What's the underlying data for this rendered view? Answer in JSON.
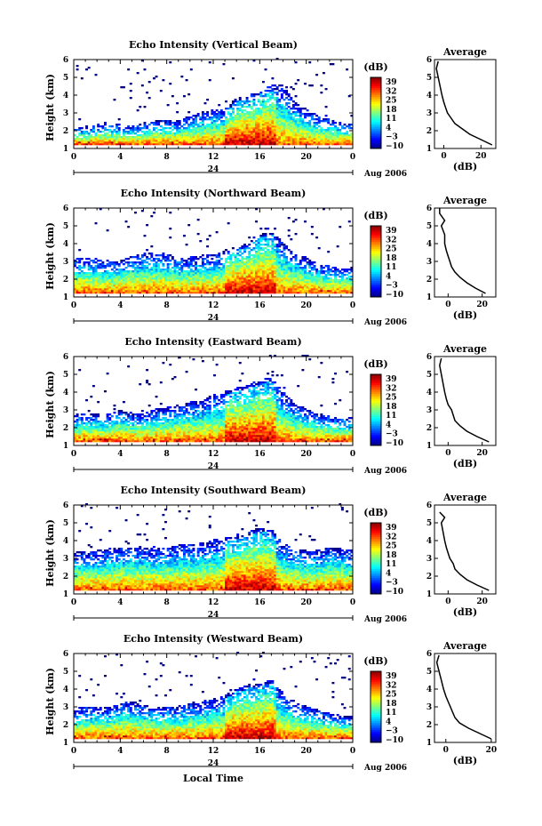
{
  "footer": {
    "xlabel": "Local Time"
  },
  "colorbar": {
    "unit": "(dB)",
    "ticks": [
      "39",
      "32",
      "25",
      "18",
      "11",
      "4",
      "−3",
      "−10"
    ],
    "range": [
      -10,
      39
    ]
  },
  "average": {
    "title": "Average",
    "xlabel": "(dB)"
  },
  "chart_data": [
    {
      "type": "heatmap",
      "title": "Echo Intensity (Vertical Beam)",
      "ylabel": "Height (km)",
      "xticks": [
        "0",
        "4",
        "8",
        "12",
        "16",
        "20",
        "0"
      ],
      "date_label": "24",
      "date_suffix": "Aug 2006",
      "yticks": [
        "1",
        "2",
        "3",
        "4",
        "5",
        "6"
      ],
      "xlim": [
        0,
        24
      ],
      "ylim": [
        1,
        6
      ],
      "top_height_km": [
        2.0,
        2.0,
        2.1,
        2.2,
        2.1,
        2.0,
        2.2,
        2.3,
        2.4,
        2.3,
        2.6,
        2.8,
        3.0,
        3.0,
        3.6,
        3.8,
        4.0,
        4.3,
        4.3,
        3.4,
        3.0,
        2.6,
        2.4,
        2.2,
        2.2
      ],
      "average_profile": {
        "xticks": [
          "0",
          "20"
        ],
        "xlim": [
          -5,
          28
        ],
        "height_km": [
          1.2,
          1.5,
          1.8,
          2.1,
          2.4,
          2.7,
          3.0,
          3.3,
          3.6,
          4.0,
          4.5,
          5.0,
          5.5,
          5.9
        ],
        "db": [
          26,
          20,
          14,
          10,
          6,
          4,
          2,
          1,
          0,
          -1,
          -2,
          -3,
          -4,
          -3
        ]
      }
    },
    {
      "type": "heatmap",
      "title": "Echo Intensity (Northward Beam)",
      "ylabel": "Height (km)",
      "xticks": [
        "0",
        "4",
        "8",
        "12",
        "16",
        "20",
        "0"
      ],
      "date_label": "24",
      "date_suffix": "Aug 2006",
      "yticks": [
        "1",
        "2",
        "3",
        "4",
        "5",
        "6"
      ],
      "xlim": [
        0,
        24
      ],
      "ylim": [
        1,
        6
      ],
      "top_height_km": [
        2.9,
        3.0,
        3.0,
        2.8,
        2.8,
        3.1,
        3.2,
        3.3,
        3.2,
        3.0,
        3.0,
        3.1,
        3.2,
        3.4,
        3.6,
        3.8,
        4.3,
        4.5,
        3.8,
        3.2,
        3.0,
        2.6,
        2.5,
        2.4,
        2.4
      ],
      "average_profile": {
        "xticks": [
          "0",
          "20"
        ],
        "xlim": [
          -8,
          28
        ],
        "height_km": [
          1.2,
          1.5,
          1.8,
          2.1,
          2.4,
          2.7,
          3.0,
          3.3,
          3.6,
          4.0,
          4.5,
          5.0,
          5.3,
          5.7,
          6.0
        ],
        "db": [
          22,
          16,
          11,
          7,
          4,
          2,
          1,
          0,
          -1,
          -2,
          -2,
          -4,
          -2,
          -5,
          -5
        ]
      }
    },
    {
      "type": "heatmap",
      "title": "Echo Intensity (Eastward Beam)",
      "ylabel": "Height (km)",
      "xticks": [
        "0",
        "4",
        "8",
        "12",
        "16",
        "20",
        "0"
      ],
      "date_label": "24",
      "date_suffix": "Aug 2006",
      "yticks": [
        "1",
        "2",
        "3",
        "4",
        "5",
        "6"
      ],
      "xlim": [
        0,
        24
      ],
      "ylim": [
        1,
        6
      ],
      "top_height_km": [
        2.5,
        2.6,
        2.6,
        2.5,
        2.8,
        2.6,
        2.6,
        2.8,
        2.9,
        3.0,
        3.2,
        3.3,
        3.6,
        3.8,
        4.0,
        4.2,
        4.4,
        4.6,
        3.8,
        3.2,
        2.8,
        2.6,
        2.4,
        2.4,
        2.3
      ],
      "average_profile": {
        "xticks": [
          "0",
          "20"
        ],
        "xlim": [
          -8,
          28
        ],
        "height_km": [
          1.2,
          1.5,
          1.8,
          2.1,
          2.4,
          2.7,
          3.0,
          3.3,
          3.6,
          4.0,
          4.5,
          5.0,
          5.5,
          5.9
        ],
        "db": [
          24,
          17,
          11,
          7,
          4,
          3,
          2,
          0,
          -1,
          -2,
          -3,
          -4,
          -5,
          -4
        ]
      }
    },
    {
      "type": "heatmap",
      "title": "Echo Intensity (Southward Beam)",
      "ylabel": "Height (km)",
      "xticks": [
        "0",
        "4",
        "8",
        "12",
        "16",
        "20",
        "0"
      ],
      "date_label": "24",
      "date_suffix": "Aug 2006",
      "yticks": [
        "1",
        "2",
        "3",
        "4",
        "5",
        "6"
      ],
      "xlim": [
        0,
        24
      ],
      "ylim": [
        1,
        6
      ],
      "top_height_km": [
        3.1,
        3.2,
        3.2,
        3.3,
        3.4,
        3.4,
        3.4,
        3.3,
        3.4,
        3.5,
        3.6,
        3.6,
        3.8,
        3.9,
        4.0,
        4.2,
        4.5,
        4.4,
        3.6,
        3.3,
        3.2,
        3.2,
        3.4,
        3.3,
        3.2
      ],
      "average_profile": {
        "xticks": [
          "0",
          "20"
        ],
        "xlim": [
          -8,
          28
        ],
        "height_km": [
          1.2,
          1.5,
          1.8,
          2.1,
          2.4,
          2.7,
          3.0,
          3.3,
          3.6,
          4.0,
          4.5,
          5.0,
          5.3,
          5.6
        ],
        "db": [
          24,
          17,
          11,
          7,
          4,
          3,
          1,
          0,
          -1,
          -2,
          -3,
          -4,
          -2,
          -5
        ]
      }
    },
    {
      "type": "heatmap",
      "title": "Echo Intensity (Westward Beam)",
      "ylabel": "Height (km)",
      "xticks": [
        "0",
        "4",
        "8",
        "12",
        "16",
        "20",
        "0"
      ],
      "date_label": "24",
      "date_suffix": "Aug 2006",
      "yticks": [
        "1",
        "2",
        "3",
        "4",
        "5",
        "6"
      ],
      "xlim": [
        0,
        24
      ],
      "ylim": [
        1,
        6
      ],
      "top_height_km": [
        2.6,
        2.8,
        2.8,
        2.7,
        3.0,
        3.1,
        2.9,
        2.7,
        2.8,
        2.8,
        3.0,
        3.1,
        3.2,
        3.4,
        3.8,
        4.0,
        4.1,
        4.3,
        3.6,
        3.0,
        2.8,
        2.6,
        2.4,
        2.3,
        2.2
      ],
      "average_profile": {
        "xticks": [
          "0",
          "20"
        ],
        "xlim": [
          -5,
          22
        ],
        "height_km": [
          1.2,
          1.5,
          1.8,
          2.1,
          2.4,
          2.7,
          3.0,
          3.3,
          3.6,
          4.0,
          4.5,
          5.0,
          5.5,
          5.9
        ],
        "db": [
          20,
          15,
          10,
          6,
          4,
          3,
          2,
          1,
          0,
          -1,
          -2,
          -3,
          -4,
          -3
        ]
      }
    }
  ]
}
